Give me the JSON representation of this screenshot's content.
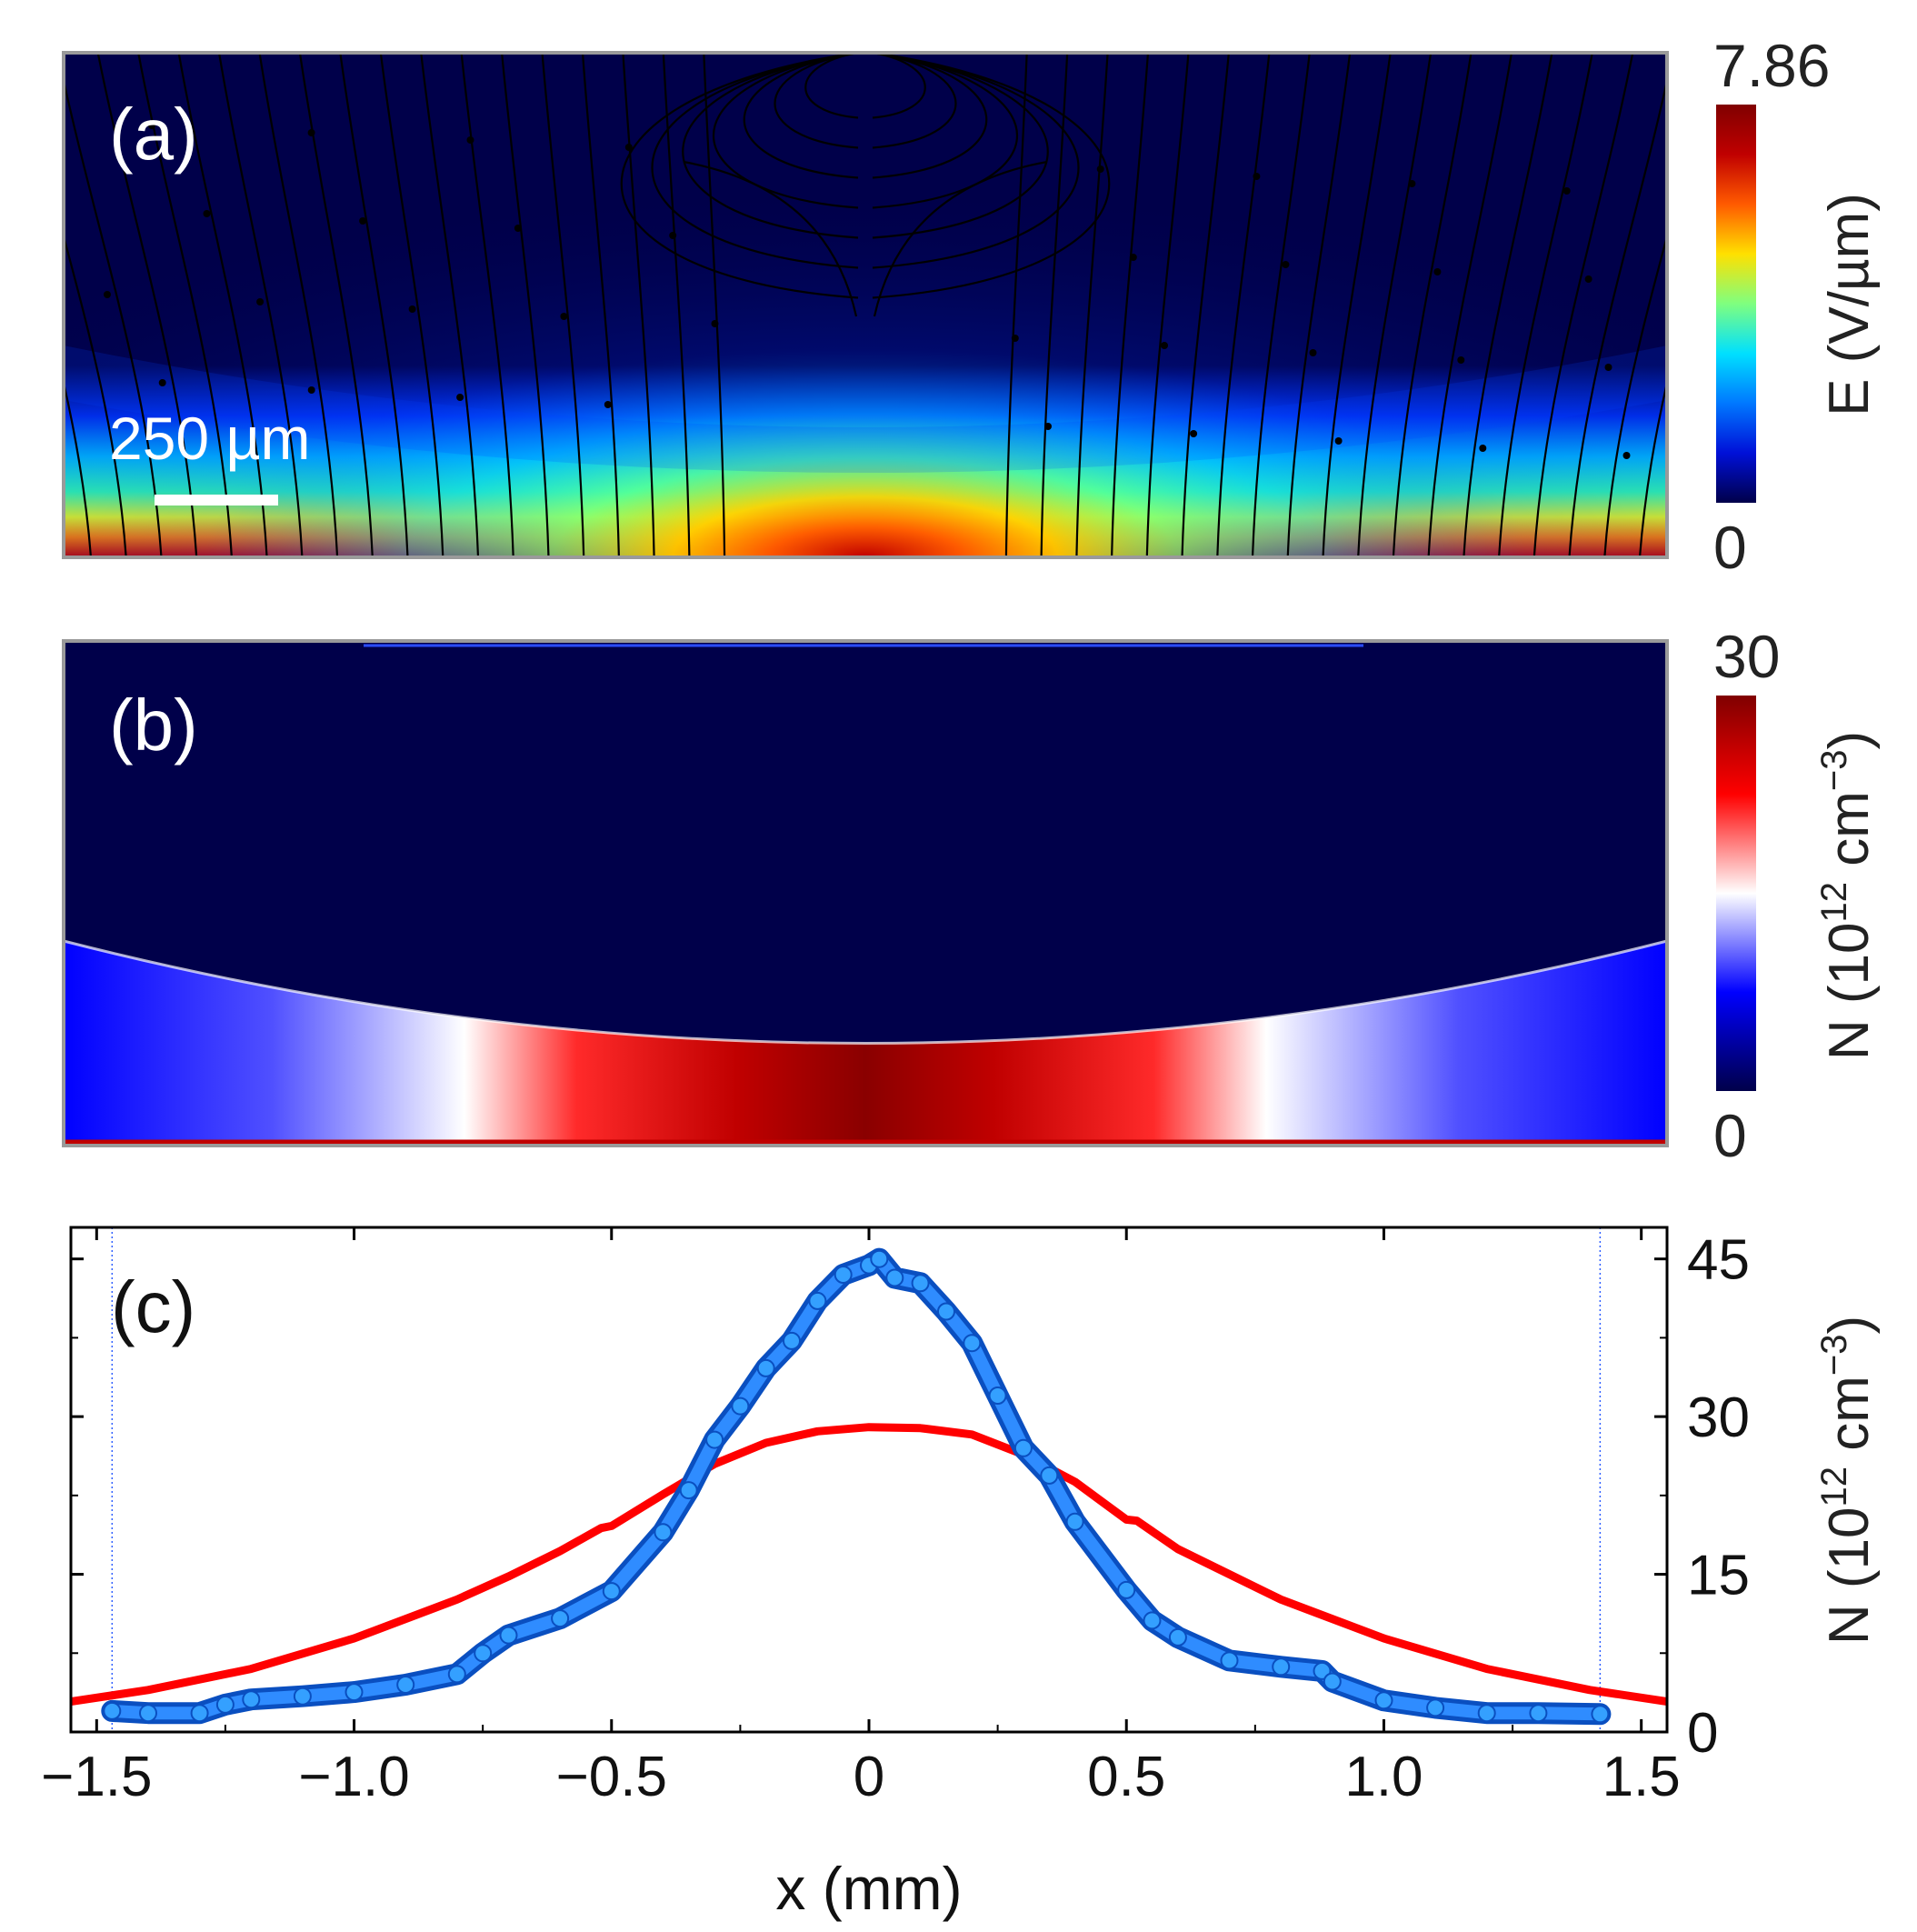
{
  "panels": {
    "a": {
      "label": "(a)",
      "scale_bar": "250 µm",
      "colorbar": {
        "max": "7.86",
        "min": "0",
        "title": "E (V/µm)"
      },
      "colors": [
        "#00004a",
        "#0010d8",
        "#0078ff",
        "#00e0ff",
        "#7fff7f",
        "#ffe000",
        "#ff5a00",
        "#c00000",
        "#800000"
      ]
    },
    "b": {
      "label": "(b)",
      "colorbar": {
        "max": "30",
        "min": "0",
        "title_main": "N (10",
        "title_sup": "12",
        "title_end": " cm",
        "title_sup2": "−3",
        "title_close": ")"
      },
      "colors": [
        "#00004a",
        "#0000ff",
        "#ffffff",
        "#ff0000",
        "#800000"
      ]
    }
  },
  "chart_data": {
    "type": "line",
    "label": "(c)",
    "xlabel": "x (mm)",
    "ylabel_main": "N (10",
    "ylabel_sup": "12",
    "ylabel_end": " cm",
    "ylabel_sup2": "−3",
    "ylabel_close": ")",
    "xlim": [
      -1.55,
      1.55
    ],
    "ylim": [
      0,
      48
    ],
    "x_ticks": [
      "−1.5",
      "−1.0",
      "−0.5",
      "0",
      "0.5",
      "1.0",
      "1.5"
    ],
    "x_tick_values": [
      -1.5,
      -1.0,
      -0.5,
      0,
      0.5,
      1.0,
      1.5
    ],
    "y_ticks": [
      "0",
      "15",
      "30",
      "45"
    ],
    "y_tick_values": [
      0,
      15,
      30,
      45
    ],
    "vertical_lines": [
      -1.47,
      1.42
    ],
    "series": [
      {
        "color": "#ff0000",
        "x": [
          -1.55,
          -1.4,
          -1.2,
          -1.0,
          -0.8,
          -0.7,
          -0.6,
          -0.52,
          -0.5,
          -0.4,
          -0.3,
          -0.2,
          -0.1,
          0,
          0.1,
          0.2,
          0.3,
          0.4,
          0.5,
          0.52,
          0.6,
          0.7,
          0.8,
          1.0,
          1.2,
          1.4,
          1.55
        ],
        "values": [
          2.9,
          4.0,
          6.0,
          8.9,
          12.6,
          14.8,
          17.2,
          19.4,
          19.6,
          22.6,
          25.5,
          27.5,
          28.6,
          29.0,
          28.9,
          28.3,
          26.4,
          23.8,
          20.2,
          20.1,
          17.4,
          15.0,
          12.6,
          8.9,
          6.0,
          4.0,
          2.9
        ]
      },
      {
        "color": "#1c6fe0",
        "x": [
          -1.47,
          -1.4,
          -1.3,
          -1.25,
          -1.2,
          -1.1,
          -1.0,
          -0.9,
          -0.8,
          -0.75,
          -0.7,
          -0.6,
          -0.5,
          -0.4,
          -0.35,
          -0.3,
          -0.25,
          -0.2,
          -0.15,
          -0.1,
          -0.05,
          0,
          0.02,
          0.05,
          0.1,
          0.15,
          0.2,
          0.25,
          0.3,
          0.35,
          0.4,
          0.5,
          0.55,
          0.6,
          0.7,
          0.8,
          0.88,
          0.9,
          1.0,
          1.1,
          1.2,
          1.3,
          1.42
        ],
        "values": [
          2.0,
          1.8,
          1.8,
          2.6,
          3.1,
          3.4,
          3.8,
          4.5,
          5.5,
          7.5,
          9.2,
          10.8,
          13.4,
          19.0,
          23.0,
          27.8,
          31.0,
          34.6,
          37.2,
          41.0,
          43.5,
          44.4,
          45.0,
          43.2,
          42.7,
          40.0,
          37.0,
          32.0,
          27.0,
          24.4,
          20.0,
          13.5,
          10.6,
          9.0,
          6.8,
          6.2,
          5.8,
          4.8,
          3.0,
          2.3,
          1.8,
          1.8,
          1.7
        ]
      }
    ]
  }
}
